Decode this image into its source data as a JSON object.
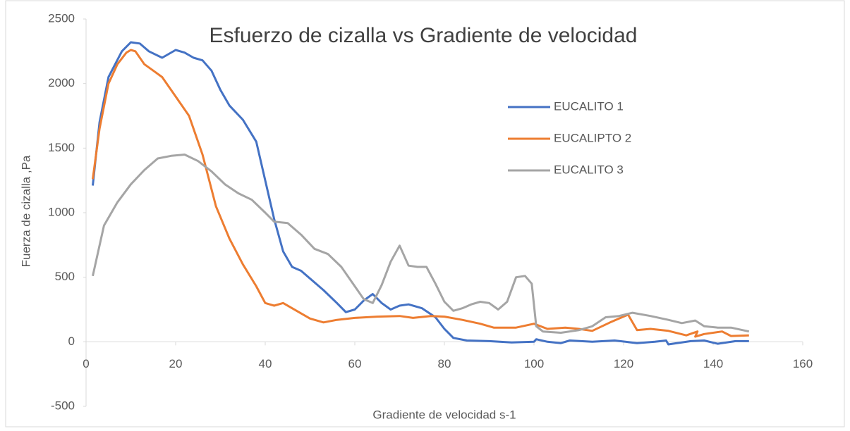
{
  "chart_data": {
    "type": "line",
    "title": "Esfuerzo de cizalla vs Gradiente de velocidad",
    "x_label": "Gradiente de velocidad s-1",
    "y_label": "Fuerza de cizalla   ,Pa",
    "xlim": [
      0,
      160
    ],
    "xticks": [
      0,
      20,
      40,
      60,
      80,
      100,
      120,
      140,
      160
    ],
    "ylim": [
      -500,
      2500
    ],
    "yticks": [
      -500,
      0,
      500,
      1000,
      1500,
      2000,
      2500
    ],
    "grid": false,
    "legend": "upper right",
    "series": [
      {
        "name": "EUCALITO 1",
        "color": "#4472c4",
        "x": [
          1.5,
          3,
          5,
          8,
          10,
          12,
          14,
          17,
          20,
          22,
          24,
          26,
          28,
          30,
          32,
          35,
          38,
          40,
          42,
          44,
          46,
          48,
          50,
          53,
          56,
          58,
          60,
          62,
          64,
          66,
          68,
          70,
          72,
          75,
          78,
          80,
          82,
          85,
          90,
          95,
          100,
          100.5,
          103,
          106,
          108,
          113,
          118,
          123,
          127,
          129.5,
          130,
          135,
          138,
          141,
          145,
          148
        ],
        "values": [
          1210,
          1700,
          2050,
          2250,
          2320,
          2310,
          2250,
          2200,
          2260,
          2240,
          2200,
          2180,
          2100,
          1950,
          1830,
          1720,
          1550,
          1250,
          950,
          700,
          580,
          550,
          490,
          400,
          300,
          230,
          250,
          320,
          370,
          300,
          250,
          280,
          290,
          260,
          190,
          100,
          30,
          10,
          5,
          -5,
          0,
          20,
          0,
          -10,
          10,
          0,
          10,
          -10,
          0,
          10,
          -20,
          5,
          10,
          -15,
          5,
          5
        ]
      },
      {
        "name": "EUCALIPTO 2",
        "color": "#ed7d31",
        "x": [
          1.5,
          3,
          5,
          7,
          9,
          10,
          11,
          13,
          15,
          17,
          20,
          23,
          26,
          29,
          32,
          35,
          38,
          40,
          42,
          44,
          47,
          50,
          53,
          56,
          60,
          65,
          70,
          73,
          77,
          80,
          84,
          88,
          91,
          96,
          100,
          103,
          107,
          110,
          113,
          117,
          121,
          123,
          126,
          130,
          134,
          136.5,
          136,
          138,
          142,
          144,
          148
        ],
        "values": [
          1260,
          1650,
          2000,
          2150,
          2240,
          2260,
          2250,
          2150,
          2100,
          2050,
          1900,
          1750,
          1450,
          1050,
          800,
          600,
          430,
          300,
          280,
          300,
          240,
          180,
          150,
          170,
          185,
          195,
          200,
          185,
          200,
          195,
          170,
          140,
          110,
          110,
          140,
          100,
          110,
          100,
          85,
          150,
          210,
          90,
          100,
          85,
          50,
          80,
          40,
          60,
          80,
          45,
          50
        ]
      },
      {
        "name": "EUCALITO 3",
        "color": "#a5a5a5",
        "x": [
          1.5,
          4,
          7,
          10,
          13,
          16,
          19,
          22,
          25,
          28,
          31,
          34,
          37,
          40,
          42,
          45,
          48,
          51,
          54,
          57,
          60,
          62,
          64,
          66,
          68,
          70,
          72,
          74,
          76,
          78,
          80,
          82,
          84,
          86,
          88,
          90,
          92,
          94,
          96,
          98,
          99.5,
          100.5,
          102,
          106,
          110,
          113,
          116,
          119,
          122,
          126,
          130,
          133,
          136,
          138,
          141,
          144,
          148
        ],
        "values": [
          510,
          900,
          1080,
          1220,
          1330,
          1420,
          1440,
          1450,
          1400,
          1320,
          1220,
          1150,
          1100,
          1000,
          930,
          920,
          830,
          720,
          680,
          580,
          430,
          330,
          300,
          440,
          620,
          745,
          590,
          580,
          580,
          450,
          310,
          240,
          260,
          290,
          310,
          300,
          250,
          310,
          500,
          510,
          450,
          120,
          80,
          70,
          90,
          120,
          190,
          200,
          225,
          200,
          170,
          145,
          165,
          120,
          110,
          110,
          80
        ]
      }
    ]
  }
}
